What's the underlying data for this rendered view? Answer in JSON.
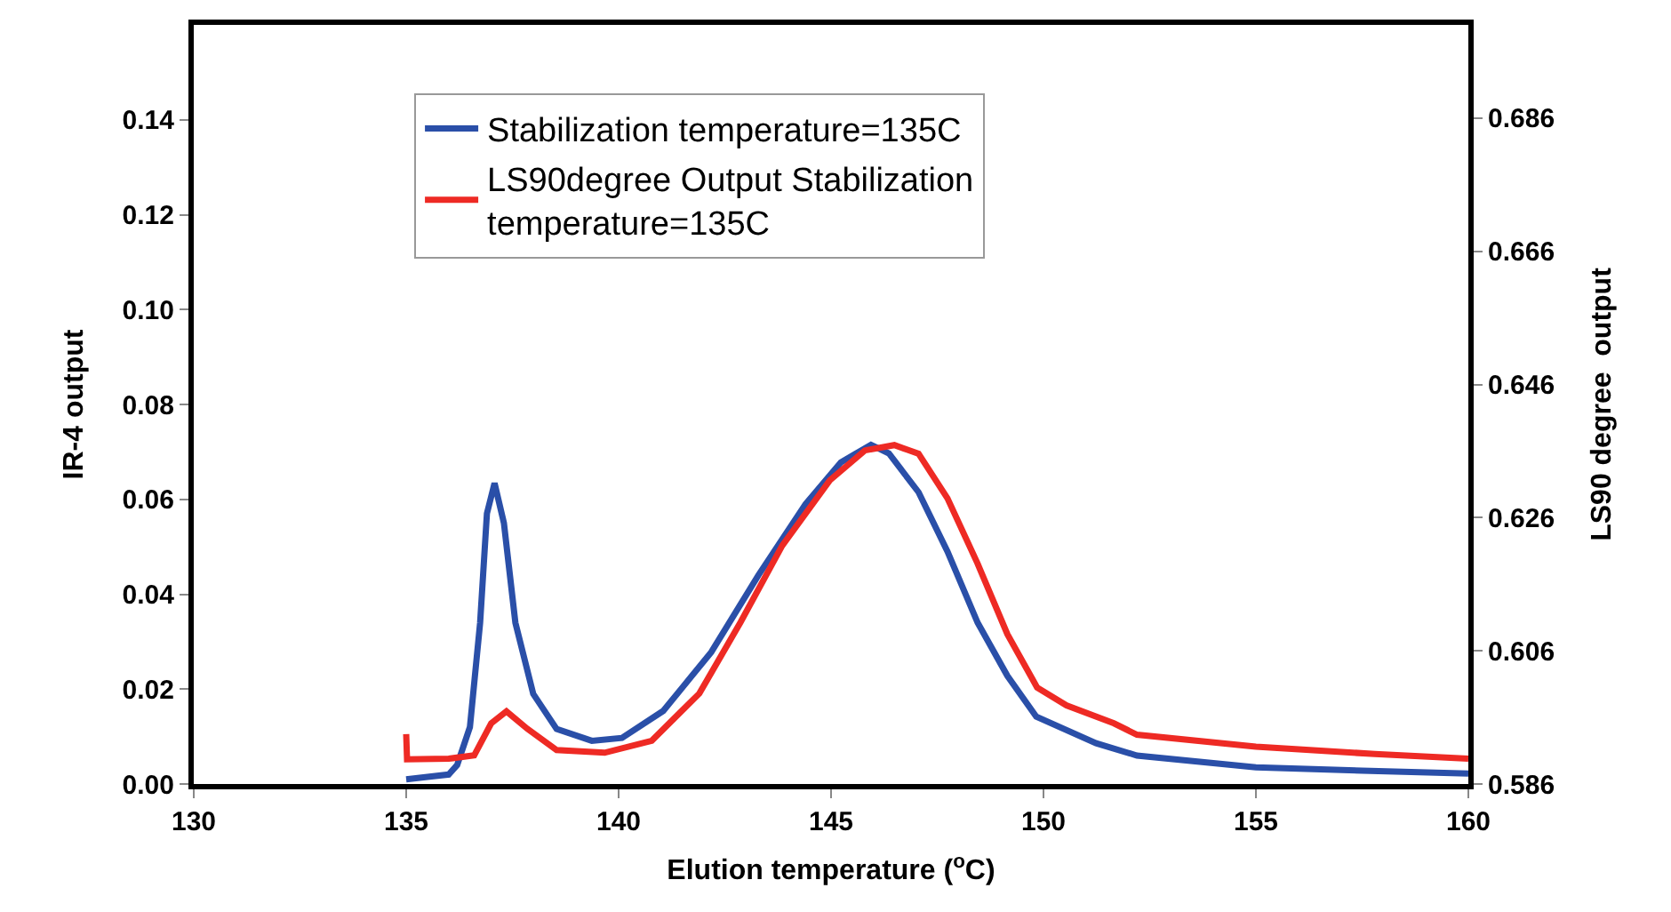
{
  "chart_data": {
    "type": "line",
    "xlabel": "Elution temperature ($^{o}$C)",
    "ylabel": "IR-4 output",
    "y2label": "LS90 degree  output",
    "xlim": [
      130,
      160
    ],
    "xticks": [
      130,
      135,
      140,
      145,
      150,
      155,
      160
    ],
    "ylim": [
      0,
      0.16
    ],
    "yticks": [
      {
        "value": 0,
        "label": "0.00"
      },
      {
        "value": 0.02,
        "label": "0.02"
      },
      {
        "value": 0.04,
        "label": "0.04"
      },
      {
        "value": 0.06,
        "label": "0.06"
      },
      {
        "value": 0.08,
        "label": "0.08"
      },
      {
        "value": 0.1,
        "label": "0.10"
      },
      {
        "value": 0.12,
        "label": "0.12"
      },
      {
        "value": 0.14,
        "label": "0.14"
      }
    ],
    "y2lim": [
      0.586,
      0.7
    ],
    "y2ticks": [
      0.586,
      0.606,
      0.626,
      0.646,
      0.666,
      0.686
    ],
    "legend": "top",
    "marker": "none",
    "line_style": "solid",
    "series": [
      {
        "name": "Stabilization temperature=135C",
        "color": "#2a4fa8",
        "x": [
          135,
          135.5,
          136,
          136.2,
          136.5,
          136.74,
          136.9,
          137.08,
          137.3,
          137.57,
          137.99,
          138.54,
          139.37,
          140.08,
          141.05,
          142.18,
          143.29,
          144.4,
          145.23,
          145.94,
          146.36,
          147.06,
          147.74,
          148.45,
          149.15,
          149.83,
          151.24,
          152.2,
          155.0,
          157.5,
          160
        ],
        "values": [
          0.001,
          0.0015,
          0.002,
          0.004,
          0.012,
          0.034,
          0.057,
          0.0634,
          0.055,
          0.034,
          0.019,
          0.0116,
          0.0091,
          0.0097,
          0.0154,
          0.0278,
          0.044,
          0.059,
          0.0678,
          0.0715,
          0.0697,
          0.0615,
          0.049,
          0.034,
          0.0228,
          0.0142,
          0.0086,
          0.006,
          0.0035,
          0.0028,
          0.0022
        ]
      },
      {
        "name": "LS90degree Output Stabilization temperature=135C",
        "color": "#ee2a24",
        "axis": "y2",
        "x": [
          135,
          135.02,
          136.0,
          136.6,
          137.0,
          137.36,
          137.85,
          138.54,
          139.67,
          140.78,
          141.9,
          142.87,
          143.85,
          144.97,
          145.8,
          146.49,
          147.06,
          147.74,
          148.45,
          149.15,
          149.85,
          150.54,
          151.66,
          152.2,
          155.0,
          157.8,
          160
        ],
        "values": [
          0.5935,
          0.5897,
          0.5898,
          0.5903,
          0.5951,
          0.5969,
          0.5943,
          0.5911,
          0.5907,
          0.5925,
          0.5996,
          0.6103,
          0.6218,
          0.6316,
          0.6361,
          0.6369,
          0.6356,
          0.6289,
          0.6191,
          0.6085,
          0.6005,
          0.5978,
          0.5951,
          0.5934,
          0.5916,
          0.5905,
          0.5898
        ]
      }
    ]
  }
}
